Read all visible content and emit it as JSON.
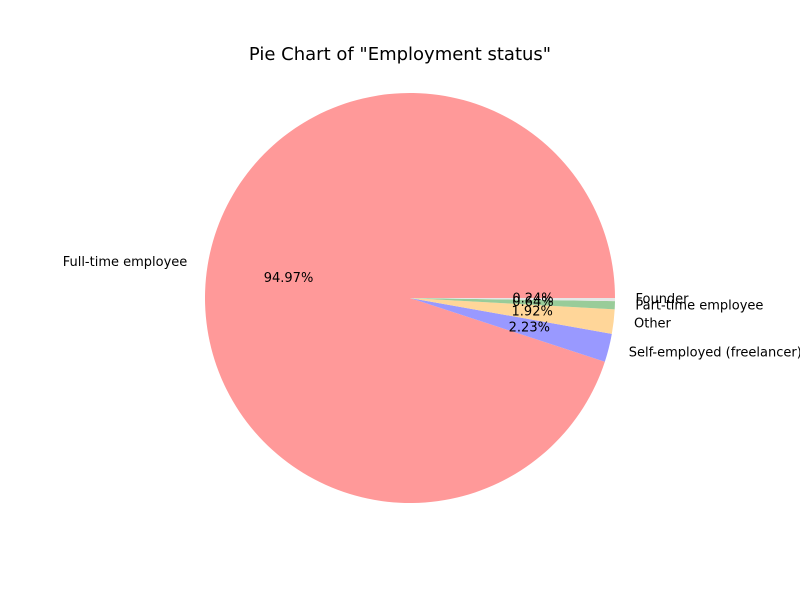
{
  "chart_data": {
    "type": "pie",
    "title": "Pie Chart of \"Employment status\"",
    "slices": [
      {
        "label": "Full-time employee",
        "value": 94.97,
        "pct_label": "94.97%",
        "color": "#ff9999"
      },
      {
        "label": "Self-employed (freelancer)",
        "value": 2.23,
        "pct_label": "2.23%",
        "color": "#9999ff"
      },
      {
        "label": "Other",
        "value": 1.92,
        "pct_label": "1.92%",
        "color": "#ffd699"
      },
      {
        "label": "Part-time employee",
        "value": 0.64,
        "pct_label": "0.64%",
        "color": "#99cc99"
      },
      {
        "label": "Founder",
        "value": 0.24,
        "pct_label": "0.24%",
        "color": "#e6e6e6"
      }
    ]
  }
}
